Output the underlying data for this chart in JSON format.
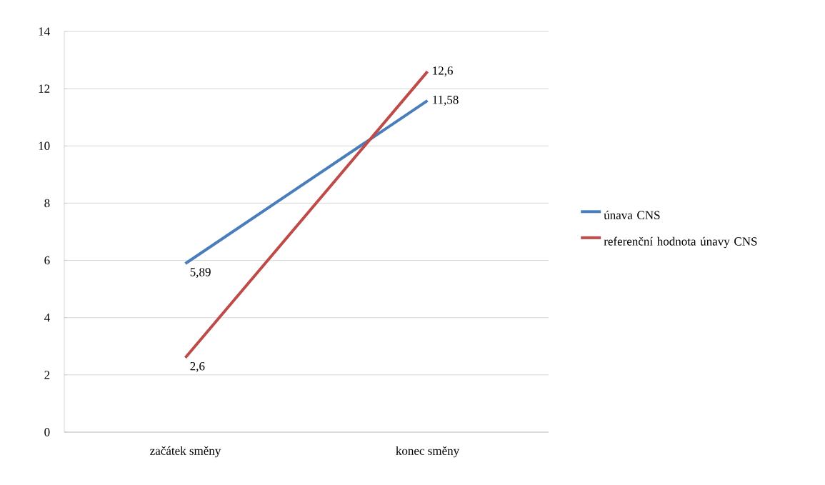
{
  "chart_data": {
    "type": "line",
    "categories": [
      "začátek směny",
      "konec směny"
    ],
    "series": [
      {
        "name": "únava CNS",
        "color": "#4a7ebb",
        "values": [
          5.89,
          11.58
        ],
        "value_labels": [
          "5,89",
          "11,58"
        ]
      },
      {
        "name": "referenční hodnota únavy CNS",
        "color": "#be4b48",
        "values": [
          2.6,
          12.6
        ],
        "value_labels": [
          "2,6",
          "12,6"
        ]
      }
    ],
    "ylim": [
      0,
      14
    ],
    "yticks": [
      0,
      2,
      4,
      6,
      8,
      10,
      12,
      14
    ],
    "grid": "y",
    "legend": "right",
    "marker": "none",
    "line_style": "solid"
  }
}
